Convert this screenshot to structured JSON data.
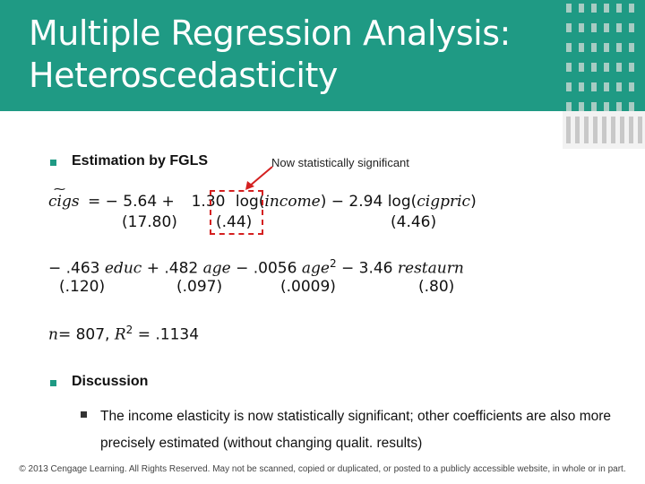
{
  "title": {
    "line1": "Multiple Regression Analysis:",
    "line2": "Heteroscedasticity"
  },
  "bullet1": {
    "label": "Estimation by FGLS",
    "annotation": "Now statistically significant"
  },
  "equation": {
    "lhs": "cigs",
    "row1": {
      "t1": "= − 5.64 +",
      "coef_income": "1.30",
      "t2": "log(",
      "var_income": "income",
      "t3": ") − 2.94 log(",
      "var_cigpric": "cigpric",
      "t4": ")",
      "se_const": "(17.80)",
      "se_income": "(.44)",
      "se_cigpric": "(4.46)"
    },
    "row2": {
      "t1": "− .463",
      "var_educ": "educ",
      "t2": "+ .482",
      "var_age": "age",
      "t3": "− .0056",
      "var_age2": "age",
      "sup": "2",
      "t4": "− 3.46",
      "var_restaurn": "restaurn",
      "se_educ": "(.120)",
      "se_age": "(.097)",
      "se_age2": "(.0009)",
      "se_restaurn": "(.80)"
    },
    "row3": {
      "n": "n",
      "t1": "= 807, ",
      "r": "R",
      "sup": "2",
      "t2": " = .1134"
    }
  },
  "bullet2": {
    "label": "Discussion",
    "sub": "The income elasticity is now statistically significant; other coefficients are also more precisely estimated (without changing qualit. results)"
  },
  "footer": "© 2013 Cengage Learning. All Rights Reserved. May not be scanned, copied or duplicated, or posted to a publicly accessible website, in whole or in part.",
  "colors": {
    "header": "#1f9a84",
    "highlight": "#d42020"
  }
}
